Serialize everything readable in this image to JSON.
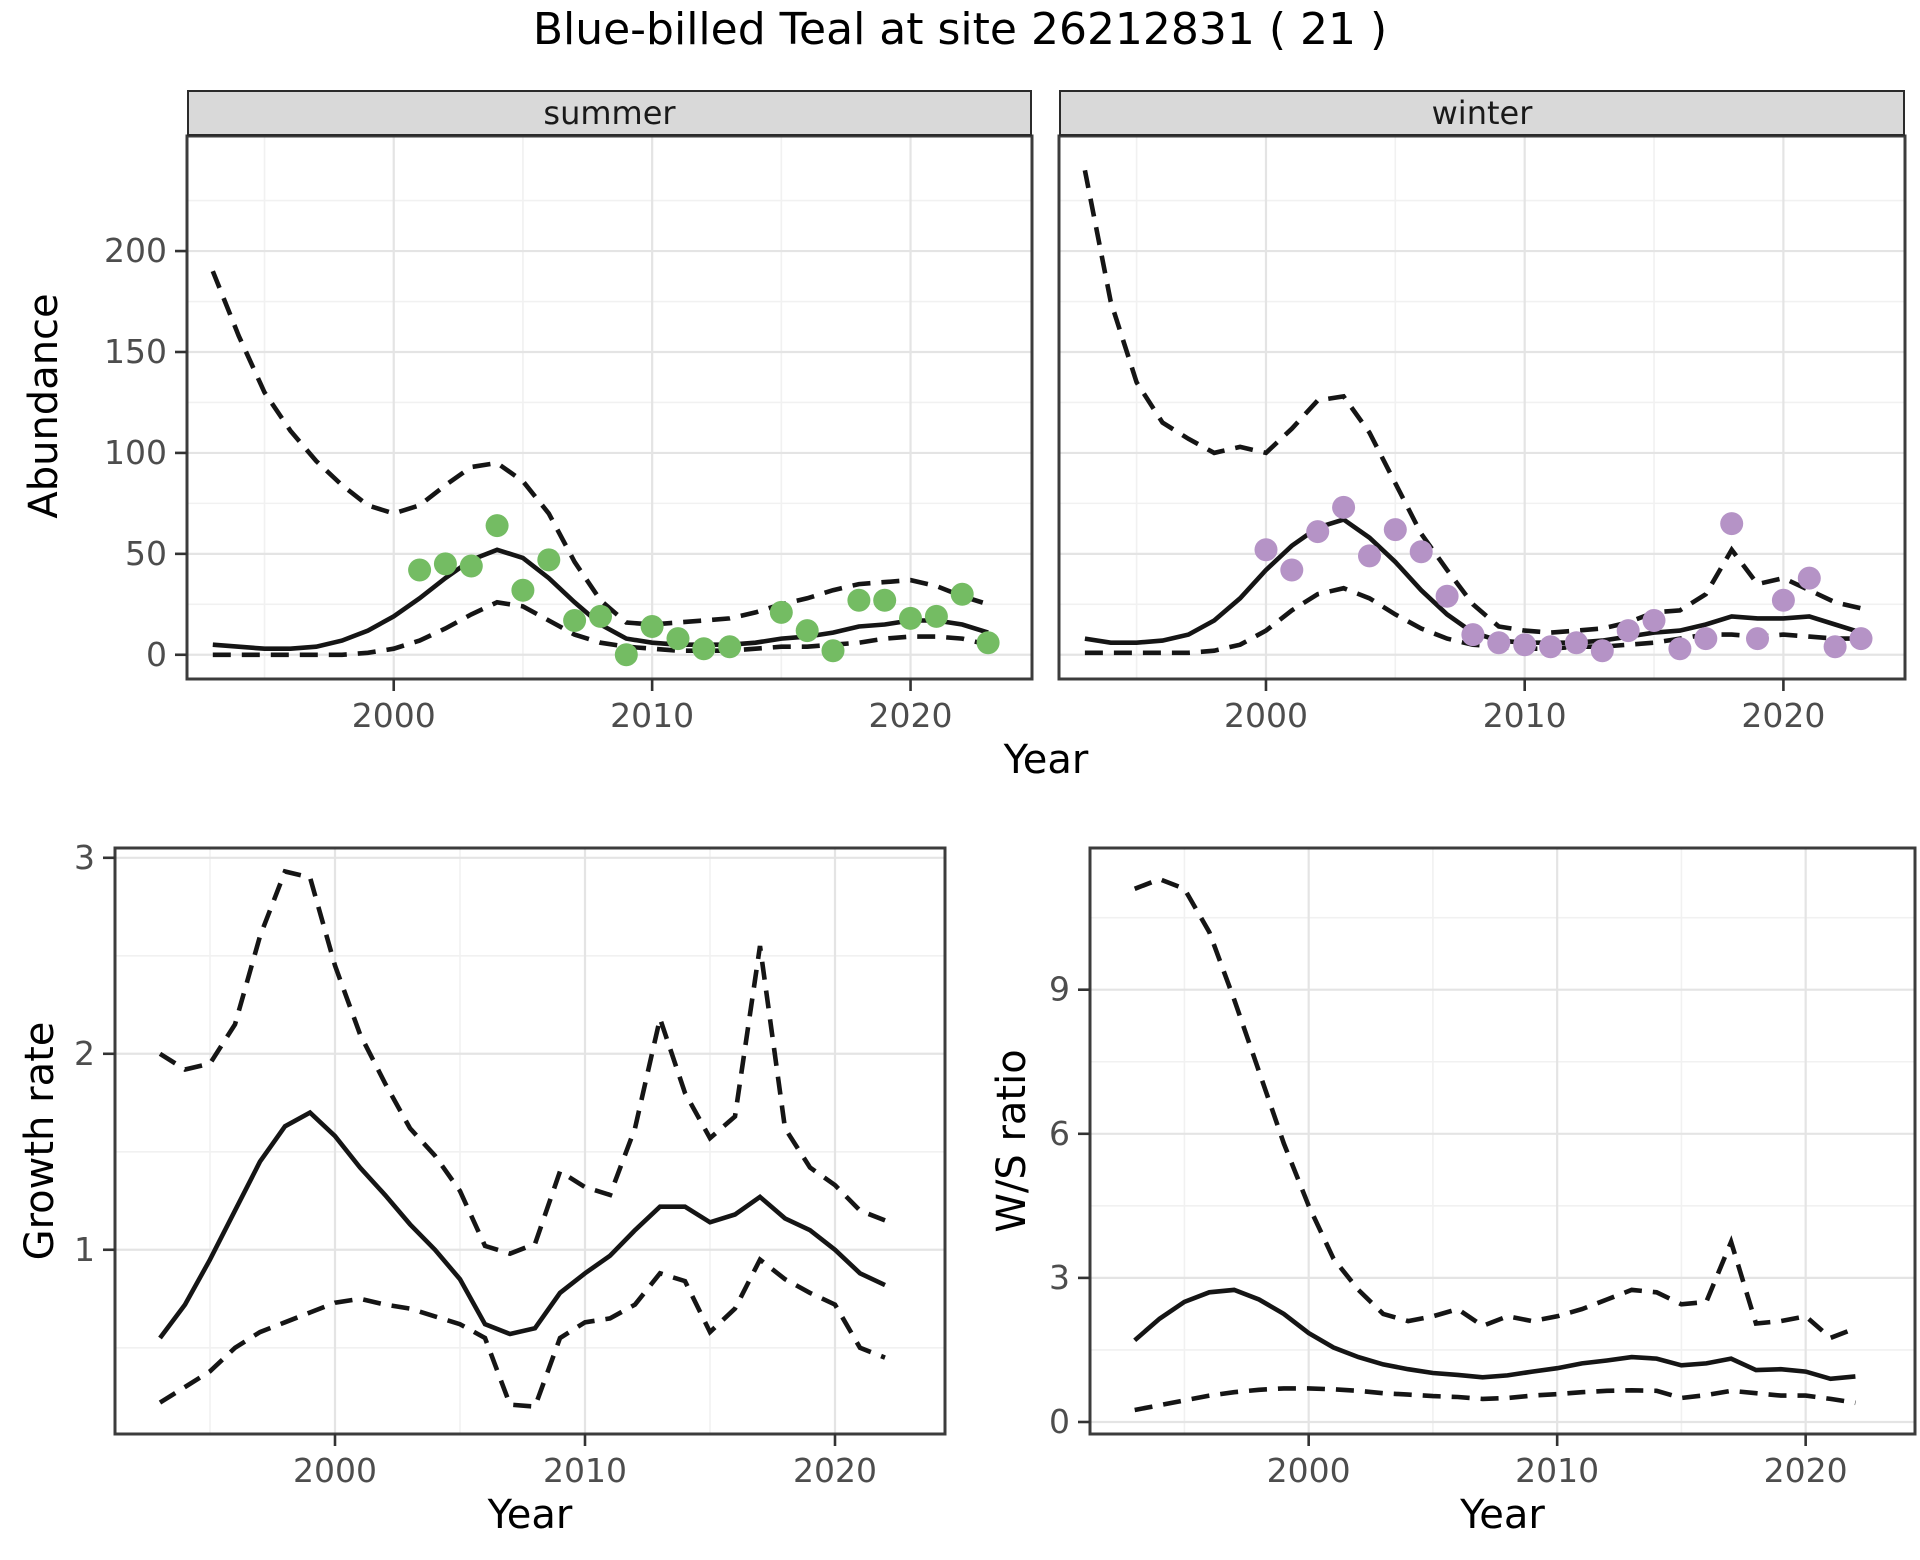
{
  "title": "Blue-billed Teal at site 26212831 ( 21 )",
  "top_row": {
    "facets": [
      "summer",
      "winter"
    ],
    "ylabel": "Abundance",
    "xlabel": "Year"
  },
  "bottom_row": {
    "left_ylabel": "Growth rate",
    "right_ylabel": "W/S ratio",
    "xlabel": "Year"
  },
  "colors": {
    "background": "#FFFFFF",
    "line": "#151515",
    "summer_points": "#74BC63",
    "winter_points": "#B593C6",
    "strip_bg": "#D9D9D9",
    "panel_border": "#3C3C3C",
    "grid_major": "#E4E4E4",
    "grid_minor": "#F1F1F1",
    "axis_text": "#4D4D4D",
    "tick_mark": "#333333"
  },
  "chart_data": [
    {
      "id": "abundance-summer",
      "type": "line",
      "facet_label": "summer",
      "xlabel": "Year",
      "ylabel": "Abundance",
      "legend": "none",
      "grid": true,
      "xlim": [
        1992.0,
        2024.7
      ],
      "ylim": [
        -12,
        257
      ],
      "xticks": [
        2000,
        2010,
        2020
      ],
      "yticks": [
        0,
        50,
        100,
        150,
        200
      ],
      "xminor": [
        1995,
        2005,
        2015
      ],
      "yminor": [
        25,
        75,
        125,
        175,
        225
      ],
      "years": [
        1993,
        1994,
        1995,
        1996,
        1997,
        1998,
        1999,
        2000,
        2001,
        2002,
        2003,
        2004,
        2005,
        2006,
        2007,
        2008,
        2009,
        2010,
        2011,
        2012,
        2013,
        2014,
        2015,
        2016,
        2017,
        2018,
        2019,
        2020,
        2021,
        2022,
        2023
      ],
      "series": [
        {
          "name": "upper_ci",
          "style": "dashed",
          "values": [
            190,
            158,
            130,
            111,
            96,
            84,
            74,
            70,
            74,
            84,
            93,
            95,
            86,
            70,
            46,
            27,
            16,
            15,
            16,
            17,
            18,
            21,
            25,
            28,
            32,
            35,
            36,
            37,
            34,
            29,
            25
          ]
        },
        {
          "name": "mean",
          "style": "solid",
          "values": [
            5,
            4,
            3,
            3,
            4,
            7,
            12,
            19,
            28,
            38,
            47,
            52,
            48,
            38,
            26,
            15,
            8,
            6,
            5,
            5,
            5,
            6,
            8,
            9,
            11,
            14,
            15,
            17,
            17,
            15,
            11
          ]
        },
        {
          "name": "lower_ci",
          "style": "dashed",
          "values": [
            0,
            0,
            0,
            0,
            0,
            0,
            1,
            3,
            7,
            13,
            20,
            26,
            24,
            17,
            10,
            6,
            4,
            3,
            2,
            2,
            2,
            3,
            4,
            4,
            5,
            6,
            8,
            9,
            9,
            8,
            5
          ]
        }
      ],
      "points": {
        "color": "#74BC63",
        "years": [
          2001,
          2002,
          2003,
          2004,
          2005,
          2006,
          2007,
          2008,
          2009,
          2010,
          2011,
          2012,
          2013,
          2015,
          2016,
          2017,
          2018,
          2019,
          2020,
          2021,
          2022,
          2023
        ],
        "values": [
          42,
          45,
          44,
          64,
          32,
          47,
          17,
          19,
          0,
          14,
          8,
          3,
          4,
          21,
          12,
          2,
          27,
          27,
          18,
          19,
          30,
          6
        ]
      }
    },
    {
      "id": "abundance-winter",
      "type": "line",
      "facet_label": "winter",
      "xlabel": "Year",
      "ylabel": "Abundance",
      "legend": "none",
      "grid": true,
      "xlim": [
        1992.0,
        2024.7
      ],
      "ylim": [
        -12,
        257
      ],
      "xticks": [
        2000,
        2010,
        2020
      ],
      "yticks": [
        0,
        50,
        100,
        150,
        200
      ],
      "xminor": [
        1995,
        2005,
        2015
      ],
      "yminor": [
        25,
        75,
        125,
        175,
        225
      ],
      "years": [
        1993,
        1994,
        1995,
        1996,
        1997,
        1998,
        1999,
        2000,
        2001,
        2002,
        2003,
        2004,
        2005,
        2006,
        2007,
        2008,
        2009,
        2010,
        2011,
        2012,
        2013,
        2014,
        2015,
        2016,
        2017,
        2018,
        2019,
        2020,
        2021,
        2022,
        2023
      ],
      "series": [
        {
          "name": "upper_ci",
          "style": "dashed",
          "values": [
            240,
            175,
            135,
            115,
            107,
            100,
            103,
            100,
            112,
            126,
            128,
            110,
            85,
            60,
            42,
            25,
            14,
            12,
            11,
            12,
            13,
            16,
            21,
            22,
            30,
            52,
            35,
            38,
            32,
            26,
            23
          ]
        },
        {
          "name": "mean",
          "style": "solid",
          "values": [
            8,
            6,
            6,
            7,
            10,
            17,
            28,
            42,
            54,
            63,
            67,
            58,
            46,
            32,
            20,
            11,
            7,
            6,
            6,
            6,
            7,
            9,
            11,
            12,
            15,
            19,
            18,
            18,
            19,
            15,
            11
          ]
        },
        {
          "name": "lower_ci",
          "style": "dashed",
          "values": [
            1,
            1,
            1,
            1,
            1,
            2,
            5,
            12,
            22,
            30,
            33,
            28,
            20,
            13,
            8,
            5,
            4,
            3,
            3,
            4,
            4,
            5,
            6,
            8,
            10,
            10,
            9,
            10,
            9,
            8,
            8
          ]
        }
      ],
      "points": {
        "color": "#B593C6",
        "years": [
          2000,
          2001,
          2002,
          2003,
          2004,
          2005,
          2006,
          2007,
          2008,
          2009,
          2010,
          2011,
          2012,
          2013,
          2014,
          2015,
          2016,
          2017,
          2018,
          2019,
          2020,
          2021,
          2022,
          2023
        ],
        "values": [
          52,
          42,
          61,
          73,
          49,
          62,
          51,
          29,
          10,
          6,
          5,
          4,
          6,
          2,
          12,
          17,
          3,
          8,
          65,
          8,
          27,
          38,
          4,
          8
        ]
      }
    },
    {
      "id": "growth-rate",
      "type": "line",
      "facet_label": "",
      "xlabel": "Year",
      "ylabel": "Growth rate",
      "legend": "none",
      "grid": true,
      "xlim": [
        1991.2,
        2024.4
      ],
      "ylim": [
        0.06,
        3.05
      ],
      "xticks": [
        2000,
        2010,
        2020
      ],
      "yticks": [
        1,
        2,
        3
      ],
      "xminor": [
        1995,
        2005,
        2015
      ],
      "yminor": [
        0.5,
        1.5,
        2.5
      ],
      "years": [
        1993,
        1994,
        1995,
        1996,
        1997,
        1998,
        1999,
        2000,
        2001,
        2002,
        2003,
        2004,
        2005,
        2006,
        2007,
        2008,
        2009,
        2010,
        2011,
        2012,
        2013,
        2014,
        2015,
        2016,
        2017,
        2018,
        2019,
        2020,
        2021,
        2022
      ],
      "series": [
        {
          "name": "upper_ci",
          "style": "dashed",
          "values": [
            2.0,
            1.92,
            1.95,
            2.15,
            2.6,
            2.93,
            2.9,
            2.45,
            2.1,
            1.85,
            1.62,
            1.48,
            1.3,
            1.02,
            0.98,
            1.03,
            1.4,
            1.32,
            1.28,
            1.62,
            2.18,
            1.8,
            1.57,
            1.68,
            2.55,
            1.62,
            1.42,
            1.33,
            1.2,
            1.15
          ]
        },
        {
          "name": "mean",
          "style": "solid",
          "values": [
            0.55,
            0.72,
            0.95,
            1.2,
            1.45,
            1.63,
            1.7,
            1.58,
            1.42,
            1.28,
            1.13,
            1.0,
            0.85,
            0.62,
            0.57,
            0.6,
            0.78,
            0.88,
            0.97,
            1.1,
            1.22,
            1.22,
            1.14,
            1.18,
            1.27,
            1.16,
            1.1,
            1.0,
            0.88,
            0.82
          ]
        },
        {
          "name": "lower_ci",
          "style": "dashed",
          "values": [
            0.22,
            0.3,
            0.38,
            0.5,
            0.58,
            0.63,
            0.68,
            0.73,
            0.75,
            0.72,
            0.7,
            0.66,
            0.62,
            0.55,
            0.21,
            0.2,
            0.55,
            0.63,
            0.65,
            0.72,
            0.88,
            0.84,
            0.58,
            0.7,
            0.95,
            0.85,
            0.78,
            0.72,
            0.5,
            0.45
          ]
        }
      ],
      "points": null
    },
    {
      "id": "ws-ratio",
      "type": "line",
      "facet_label": "",
      "xlabel": "Year",
      "ylabel": "W/S ratio",
      "legend": "none",
      "grid": true,
      "xlim": [
        1991.2,
        2024.4
      ],
      "ylim": [
        -0.25,
        11.95
      ],
      "xticks": [
        2000,
        2010,
        2020
      ],
      "yticks": [
        0,
        3,
        6,
        9
      ],
      "xminor": [
        1995,
        2005,
        2015
      ],
      "yminor": [
        1.5,
        4.5,
        7.5,
        10.5
      ],
      "years": [
        1993,
        1994,
        1995,
        1996,
        1997,
        1998,
        1999,
        2000,
        2001,
        2002,
        2003,
        2004,
        2005,
        2006,
        2007,
        2008,
        2009,
        2010,
        2011,
        2012,
        2013,
        2014,
        2015,
        2016,
        2017,
        2018,
        2019,
        2020,
        2021,
        2022
      ],
      "series": [
        {
          "name": "upper_ci",
          "style": "dashed",
          "values": [
            11.1,
            11.3,
            11.1,
            10.2,
            8.8,
            7.3,
            5.8,
            4.5,
            3.4,
            2.75,
            2.25,
            2.1,
            2.2,
            2.35,
            2.0,
            2.2,
            2.1,
            2.2,
            2.35,
            2.55,
            2.75,
            2.7,
            2.45,
            2.5,
            3.75,
            2.05,
            2.1,
            2.2,
            1.75,
            1.95
          ]
        },
        {
          "name": "mean",
          "style": "solid",
          "values": [
            1.7,
            2.15,
            2.5,
            2.7,
            2.75,
            2.55,
            2.25,
            1.85,
            1.55,
            1.35,
            1.2,
            1.1,
            1.02,
            0.98,
            0.93,
            0.97,
            1.05,
            1.12,
            1.22,
            1.28,
            1.35,
            1.32,
            1.18,
            1.22,
            1.32,
            1.08,
            1.1,
            1.05,
            0.9,
            0.95
          ]
        },
        {
          "name": "lower_ci",
          "style": "dashed",
          "values": [
            0.25,
            0.35,
            0.45,
            0.55,
            0.62,
            0.67,
            0.7,
            0.7,
            0.68,
            0.65,
            0.6,
            0.57,
            0.54,
            0.52,
            0.48,
            0.5,
            0.55,
            0.58,
            0.62,
            0.65,
            0.66,
            0.65,
            0.5,
            0.56,
            0.65,
            0.6,
            0.55,
            0.55,
            0.48,
            0.4
          ]
        }
      ],
      "points": null
    }
  ]
}
